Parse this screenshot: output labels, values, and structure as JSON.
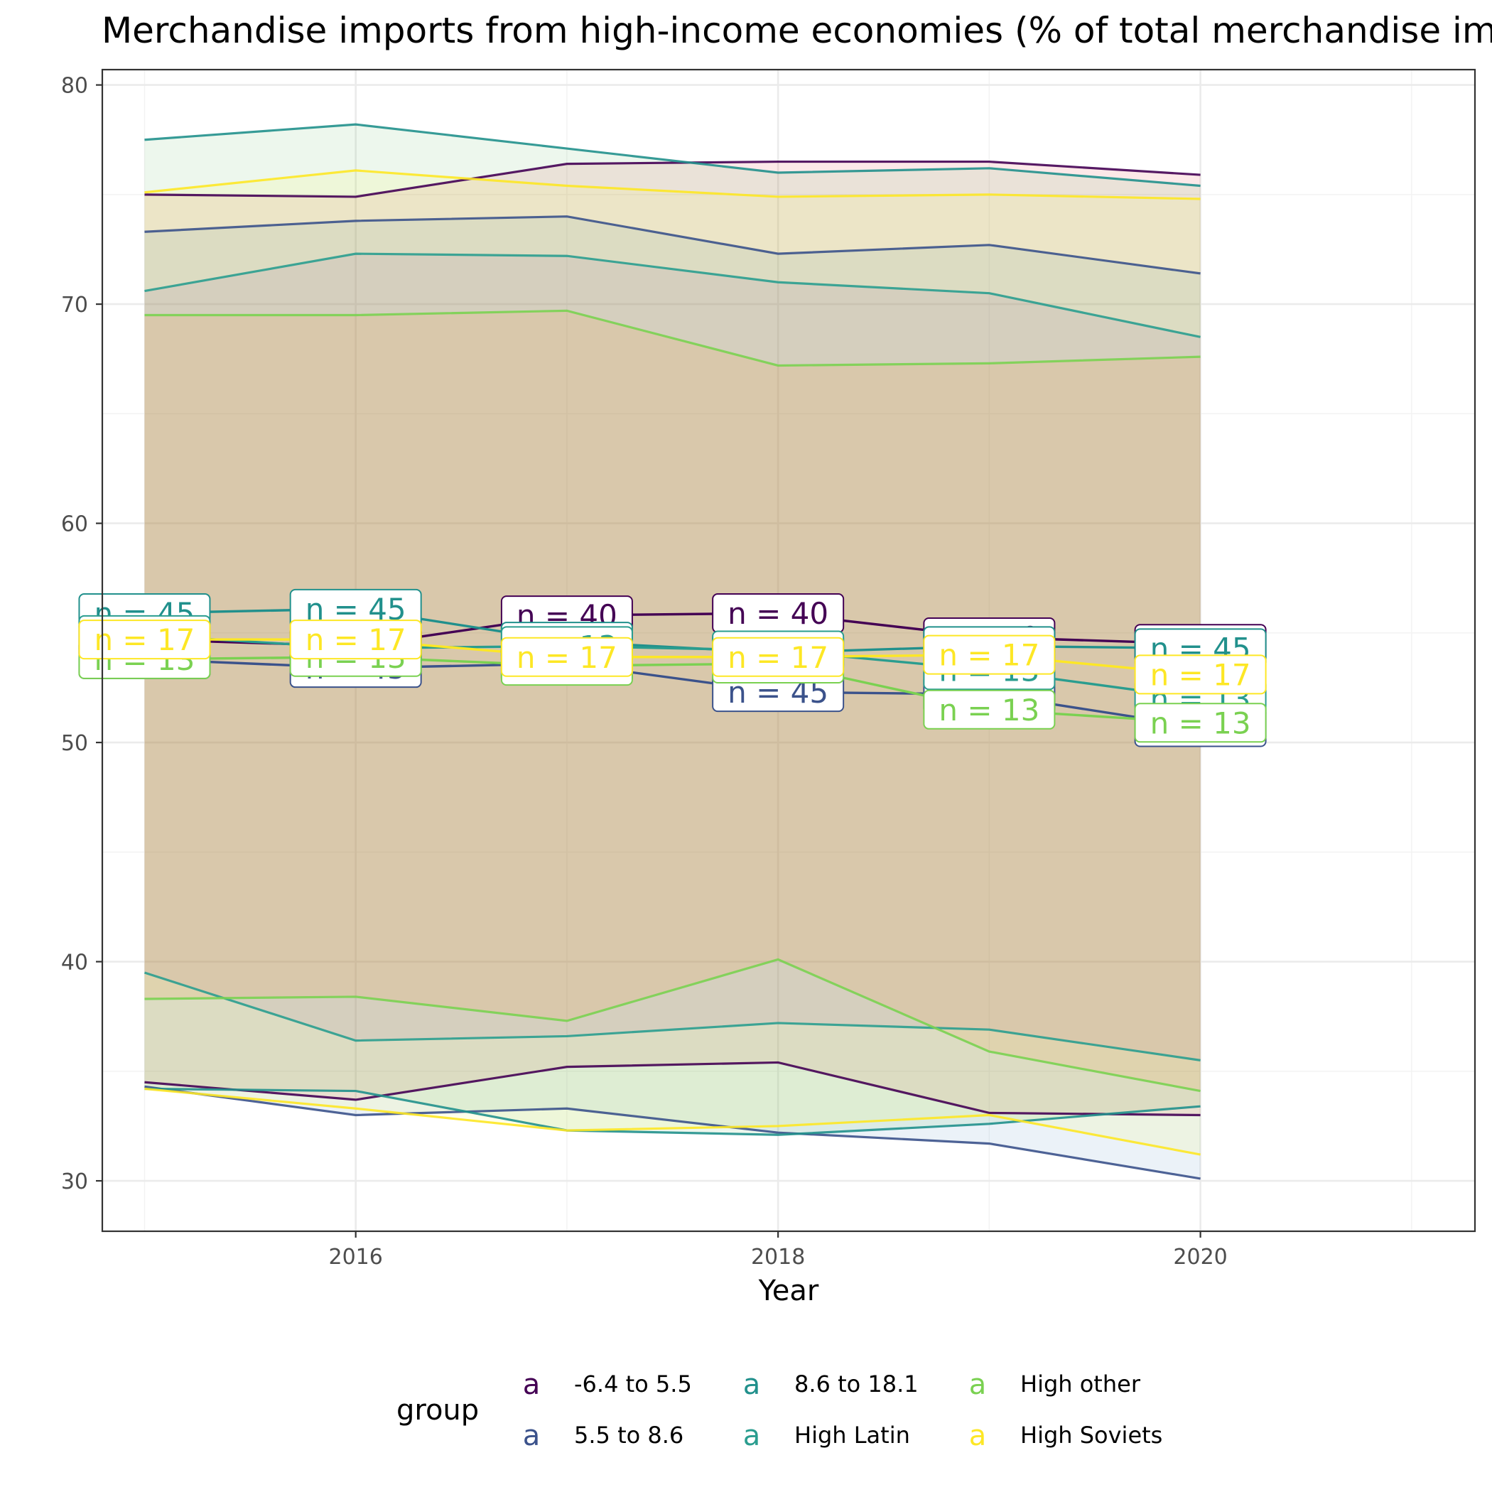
{
  "chart_data": {
    "type": "line",
    "title": "Merchandise imports from high-income economies (% of total merchandise imports)",
    "xlabel": "Year",
    "ylabel": "",
    "xlim": [
      2014.8,
      2021.3
    ],
    "ylim": [
      27.7,
      80.7
    ],
    "x_ticks": [
      2016,
      2018,
      2020
    ],
    "y_ticks": [
      30,
      40,
      50,
      60,
      70,
      80
    ],
    "grid": true,
    "legend_title": "group",
    "legend_position": "bottom",
    "legend_key_glyph": "a",
    "x": [
      2015,
      2016,
      2017,
      2018,
      2019,
      2020
    ],
    "series": [
      {
        "name": "-6.4 to 5.5",
        "color": "#440154",
        "fill": "#e41a1c",
        "n_label": "n = 40",
        "mean": [
          54.7,
          54.4,
          55.8,
          55.9,
          54.8,
          54.5
        ],
        "upper": [
          75.0,
          74.9,
          76.4,
          76.5,
          76.5,
          75.9
        ],
        "lower": [
          34.5,
          33.7,
          35.2,
          35.4,
          33.1,
          33.0
        ]
      },
      {
        "name": "5.5 to 8.6",
        "color": "#3b528b",
        "fill": "#377eb8",
        "n_label": "n = 45",
        "mean": [
          53.8,
          53.4,
          53.6,
          52.3,
          52.2,
          50.7
        ],
        "upper": [
          73.3,
          73.8,
          74.0,
          72.3,
          72.7,
          71.4
        ],
        "lower": [
          34.3,
          33.0,
          33.3,
          32.2,
          31.7,
          30.1
        ]
      },
      {
        "name": "8.6 to 18.1",
        "color": "#21908c",
        "fill": "#4daf4a",
        "n_label": "n = 45",
        "mean": [
          55.9,
          56.1,
          54.6,
          54.1,
          54.4,
          54.3
        ],
        "upper": [
          77.5,
          78.2,
          77.1,
          76.0,
          76.2,
          75.4
        ],
        "lower": [
          34.2,
          34.1,
          32.3,
          32.1,
          32.6,
          33.4
        ]
      },
      {
        "name": "High Latin",
        "color": "#2a9d8f",
        "fill": "#984ea3",
        "n_label": "n = 13",
        "mean": [
          54.9,
          54.3,
          54.4,
          54.2,
          53.3,
          52.0
        ],
        "upper": [
          70.6,
          72.3,
          72.2,
          71.0,
          70.5,
          68.5
        ],
        "lower": [
          39.5,
          36.4,
          36.6,
          37.2,
          36.9,
          35.5
        ]
      },
      {
        "name": "High other",
        "color": "#7ad151",
        "fill": "#ff7f00",
        "n_label": "n = 13",
        "mean": [
          53.8,
          53.9,
          53.5,
          53.6,
          51.5,
          50.9
        ],
        "upper": [
          69.5,
          69.5,
          69.7,
          67.2,
          67.3,
          67.6
        ],
        "lower": [
          38.3,
          38.4,
          37.3,
          40.1,
          35.9,
          34.1
        ]
      },
      {
        "name": "High Soviets",
        "color": "#fde725",
        "fill": "#ffff33",
        "n_label": "n = 17",
        "mean": [
          54.7,
          54.7,
          53.9,
          53.9,
          54.0,
          53.1
        ],
        "upper": [
          75.1,
          76.1,
          75.4,
          74.9,
          75.0,
          74.8
        ],
        "lower": [
          34.2,
          33.3,
          32.3,
          32.5,
          33.0,
          31.2
        ]
      }
    ]
  }
}
